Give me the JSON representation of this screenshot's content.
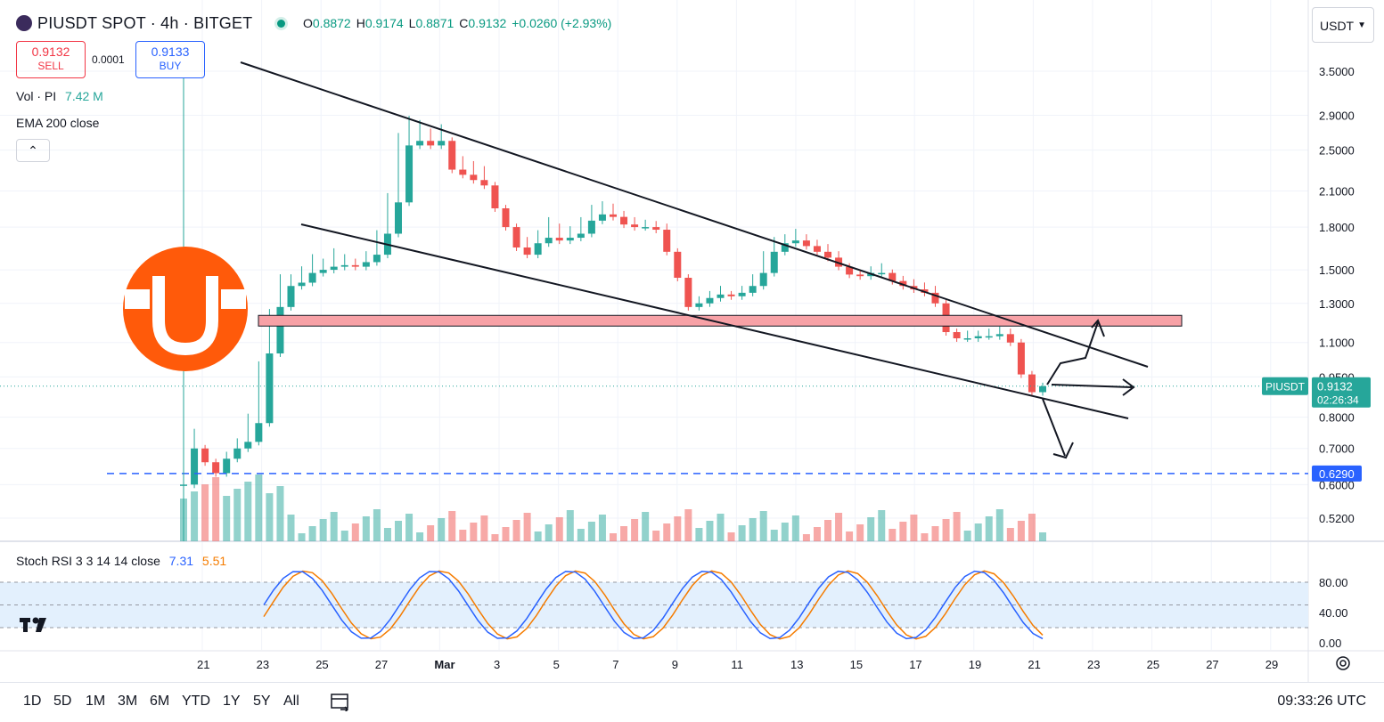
{
  "header": {
    "symbol": "PIUSDT SPOT · 4h · BITGET",
    "ohlc": {
      "o_label": "O",
      "o": "0.8872",
      "h_label": "H",
      "h": "0.9174",
      "l_label": "L",
      "l": "0.8871",
      "c_label": "C",
      "c": "0.9132",
      "change": "+0.0260 (+2.93%)"
    }
  },
  "trade": {
    "sell_price": "0.9132",
    "sell_label": "SELL",
    "spread": "0.0001",
    "buy_price": "0.9133",
    "buy_label": "BUY"
  },
  "legend": {
    "vol_label": "Vol · PI",
    "vol_value": "7.42 M",
    "ema_label": "EMA 200 close",
    "stoch_label": "Stoch RSI 3 3 14 14 close",
    "stoch_k": "7.31",
    "stoch_d": "5.51"
  },
  "currency": "USDT",
  "price_tag": {
    "symbol": "PIUSDT",
    "price": "0.9132",
    "countdown": "02:26:34"
  },
  "level_tag": "0.6290",
  "timeframes": [
    "1D",
    "5D",
    "1M",
    "3M",
    "6M",
    "YTD",
    "1Y",
    "5Y",
    "All"
  ],
  "clock": "09:33:26 UTC",
  "colors": {
    "up": "#26a69a",
    "down": "#ef5350",
    "accent": "#2962ff",
    "zone": "#f7a1a6",
    "stoch_k": "#2962ff",
    "stoch_d": "#f57c00"
  },
  "icons": {
    "logo": "coin-logo-icon",
    "chevron": "chevron-down-icon",
    "collapse": "chevron-up-icon",
    "compare": "compare-calendar-icon",
    "settings": "settings-gear-icon",
    "brand": "tradingview-logo-icon"
  },
  "chart_data": {
    "type": "candlestick",
    "price_axis_ticks": [
      "3.5000",
      "2.9000",
      "2.5000",
      "2.1000",
      "1.8000",
      "1.5000",
      "1.3000",
      "1.1000",
      "0.9500",
      "0.8000",
      "0.7000",
      "0.6000",
      "0.5200"
    ],
    "time_axis_ticks": [
      "21",
      "23",
      "25",
      "27",
      "Mar",
      "3",
      "5",
      "7",
      "9",
      "11",
      "13",
      "15",
      "17",
      "19",
      "21",
      "23",
      "25",
      "27",
      "29"
    ],
    "stoch_ticks": [
      "80.00",
      "40.00",
      "0.00"
    ],
    "scale": "log",
    "horizontal_level": 0.629,
    "resistance_zone": [
      1.18,
      1.235
    ],
    "price_path": [
      [
        0.63,
        0.6
      ],
      [
        0.75,
        0.7
      ],
      [
        0.7,
        0.66
      ],
      [
        0.66,
        0.63
      ],
      [
        0.68,
        0.67
      ],
      [
        0.72,
        0.7
      ],
      [
        0.8,
        0.72
      ],
      [
        1.0,
        0.78
      ],
      [
        1.25,
        1.05
      ],
      [
        1.45,
        1.28
      ],
      [
        1.45,
        1.4
      ],
      [
        1.5,
        1.42
      ],
      [
        1.58,
        1.48
      ],
      [
        1.55,
        1.5
      ],
      [
        1.62,
        1.52
      ],
      [
        1.58,
        1.53
      ],
      [
        1.55,
        1.52
      ],
      [
        1.6,
        1.55
      ],
      [
        1.75,
        1.6
      ],
      [
        2.05,
        1.75
      ],
      [
        2.65,
        2.0
      ],
      [
        2.85,
        2.55
      ],
      [
        2.8,
        2.6
      ],
      [
        2.7,
        2.55
      ],
      [
        2.75,
        2.6
      ],
      [
        2.6,
        2.3
      ],
      [
        2.4,
        2.25
      ],
      [
        2.35,
        2.2
      ],
      [
        2.3,
        2.15
      ],
      [
        2.1,
        1.95
      ],
      [
        1.95,
        1.8
      ],
      [
        1.8,
        1.65
      ],
      [
        1.7,
        1.6
      ],
      [
        1.75,
        1.68
      ],
      [
        1.85,
        1.72
      ],
      [
        1.8,
        1.7
      ],
      [
        1.78,
        1.72
      ],
      [
        1.85,
        1.75
      ],
      [
        1.95,
        1.85
      ],
      [
        1.98,
        1.9
      ],
      [
        1.96,
        1.88
      ],
      [
        1.9,
        1.82
      ],
      [
        1.85,
        1.8
      ],
      [
        1.83,
        1.8
      ],
      [
        1.82,
        1.78
      ],
      [
        1.8,
        1.62
      ],
      [
        1.6,
        1.45
      ],
      [
        1.4,
        1.28
      ],
      [
        1.32,
        1.3
      ],
      [
        1.35,
        1.33
      ],
      [
        1.38,
        1.35
      ],
      [
        1.35,
        1.34
      ],
      [
        1.38,
        1.36
      ],
      [
        1.45,
        1.4
      ],
      [
        1.6,
        1.48
      ],
      [
        1.7,
        1.62
      ],
      [
        1.72,
        1.68
      ],
      [
        1.76,
        1.7
      ],
      [
        1.72,
        1.66
      ],
      [
        1.68,
        1.62
      ],
      [
        1.65,
        1.58
      ],
      [
        1.6,
        1.52
      ],
      [
        1.52,
        1.47
      ],
      [
        1.48,
        1.46
      ],
      [
        1.5,
        1.48
      ],
      [
        1.52,
        1.48
      ],
      [
        1.48,
        1.43
      ],
      [
        1.44,
        1.4
      ],
      [
        1.42,
        1.38
      ],
      [
        1.4,
        1.36
      ],
      [
        1.38,
        1.3
      ],
      [
        1.25,
        1.15
      ],
      [
        1.15,
        1.12
      ],
      [
        1.14,
        1.12
      ],
      [
        1.14,
        1.13
      ],
      [
        1.15,
        1.13
      ],
      [
        1.16,
        1.14
      ],
      [
        1.15,
        1.1
      ],
      [
        1.05,
        0.96
      ],
      [
        0.96,
        0.89
      ],
      [
        0.89,
        0.913
      ]
    ]
  }
}
